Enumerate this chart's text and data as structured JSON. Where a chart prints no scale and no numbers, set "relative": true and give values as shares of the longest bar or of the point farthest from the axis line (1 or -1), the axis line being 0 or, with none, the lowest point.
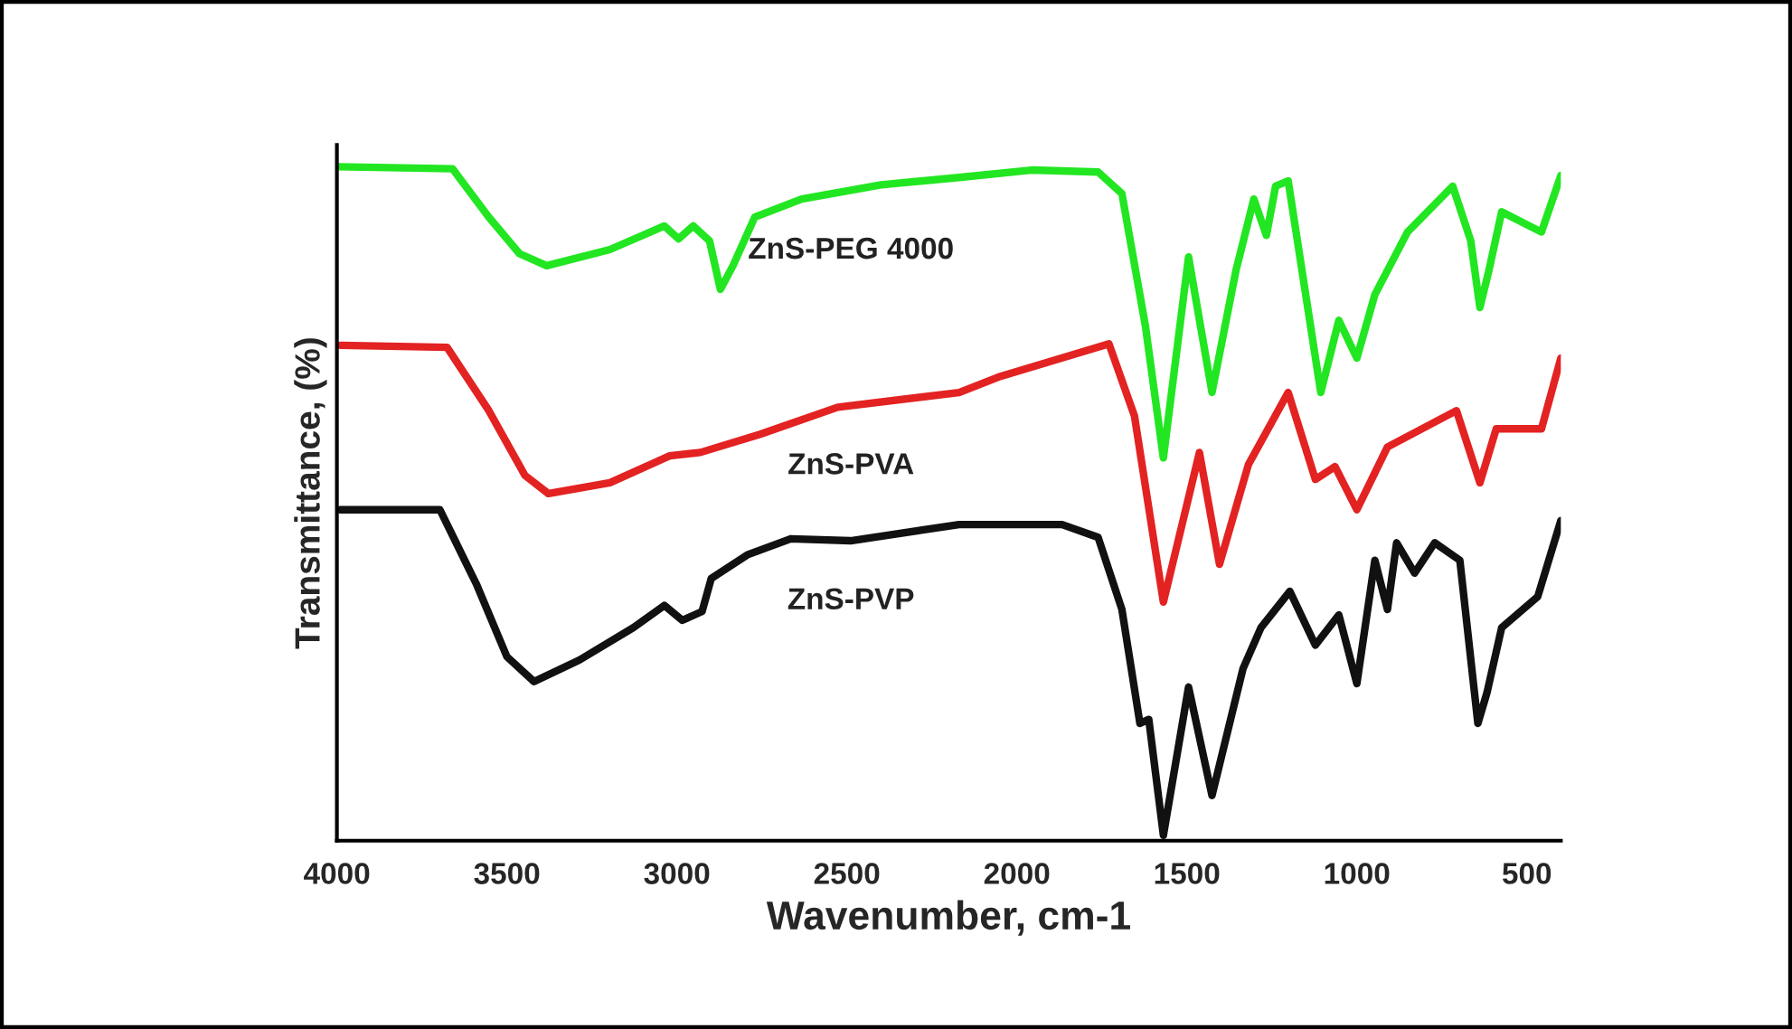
{
  "chart_data": {
    "type": "line",
    "relative": true,
    "xlabel": "Wavenumber, cm-1",
    "ylabel": "Transmittance, (%)",
    "xlim": [
      4000,
      400
    ],
    "xticks": [
      4000,
      3500,
      3000,
      2500,
      2000,
      1500,
      1000,
      500
    ],
    "tick_labels": "x",
    "grid": false,
    "legend": false,
    "marker": "none",
    "line_style": "solid",
    "series": [
      {
        "name": "ZnS-PEG 4000",
        "color": "#22e622",
        "x": [
          4000,
          3660,
          3553,
          3463,
          3383,
          3197,
          3037,
          2995,
          2952,
          2904,
          2872,
          2835,
          2771,
          2633,
          2399,
          2170,
          1957,
          1761,
          1691,
          1622,
          1569,
          1495,
          1426,
          1356,
          1303,
          1266,
          1239,
          1202,
          1106,
          1053,
          1000,
          947,
          851,
          718,
          665,
          638,
          612,
          574,
          457,
          400
        ],
        "values": [
          1.0,
          0.997,
          0.925,
          0.871,
          0.853,
          0.877,
          0.912,
          0.893,
          0.912,
          0.89,
          0.818,
          0.853,
          0.925,
          0.952,
          0.973,
          0.984,
          0.995,
          0.992,
          0.96,
          0.764,
          0.568,
          0.866,
          0.665,
          0.845,
          0.952,
          0.898,
          0.971,
          0.979,
          0.665,
          0.772,
          0.716,
          0.81,
          0.903,
          0.971,
          0.89,
          0.791,
          0.845,
          0.933,
          0.903,
          0.987
        ]
      },
      {
        "name": "ZnS-PVA",
        "color": "#e32222",
        "x": [
          3990,
          3676,
          3553,
          3447,
          3378,
          3197,
          3021,
          2931,
          2755,
          2527,
          2170,
          2048,
          1729,
          1654,
          1569,
          1463,
          1404,
          1319,
          1202,
          1122,
          1064,
          1000,
          910,
          707,
          638,
          590,
          457,
          400
        ],
        "values": [
          0.735,
          0.732,
          0.638,
          0.542,
          0.515,
          0.531,
          0.571,
          0.576,
          0.603,
          0.643,
          0.665,
          0.689,
          0.737,
          0.63,
          0.354,
          0.576,
          0.41,
          0.558,
          0.665,
          0.536,
          0.555,
          0.491,
          0.584,
          0.638,
          0.531,
          0.611,
          0.611,
          0.716
        ]
      },
      {
        "name": "ZnS-PVP",
        "color": "#111111",
        "x": [
          3990,
          3697,
          3590,
          3500,
          3420,
          3287,
          3128,
          3037,
          2984,
          2926,
          2899,
          2793,
          2665,
          2489,
          2170,
          1867,
          1761,
          1691,
          1638,
          1612,
          1569,
          1495,
          1426,
          1335,
          1282,
          1197,
          1122,
          1053,
          1000,
          947,
          910,
          883,
          830,
          771,
          697,
          644,
          617,
          574,
          468,
          400
        ],
        "values": [
          0.491,
          0.491,
          0.381,
          0.273,
          0.236,
          0.268,
          0.316,
          0.349,
          0.327,
          0.34,
          0.389,
          0.424,
          0.448,
          0.445,
          0.469,
          0.469,
          0.45,
          0.343,
          0.174,
          0.18,
          0.008,
          0.228,
          0.067,
          0.255,
          0.316,
          0.37,
          0.29,
          0.335,
          0.233,
          0.416,
          0.343,
          0.442,
          0.397,
          0.442,
          0.416,
          0.174,
          0.22,
          0.316,
          0.362,
          0.475
        ]
      }
    ]
  }
}
